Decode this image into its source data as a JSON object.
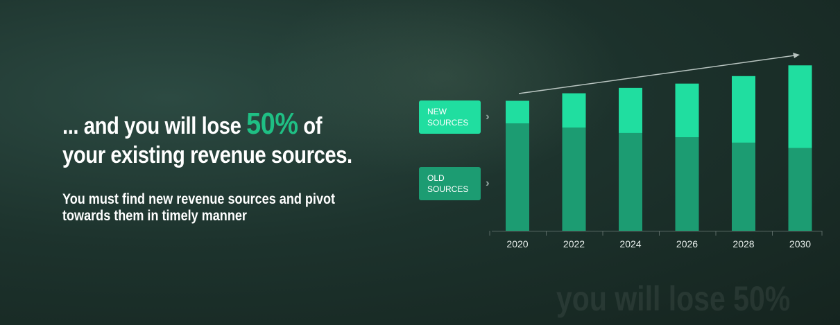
{
  "headline": {
    "prefix": "... and you will lose ",
    "highlight": "50%",
    "suffix": " of your existing revenue sources."
  },
  "subtext": "You must find new revenue sources and pivot towards them in timely manner",
  "watermark": "you will lose 50%",
  "colors": {
    "new_sources": "#20dea0",
    "old_sources": "#1c9c72",
    "highlight": "#1fbf84"
  },
  "chart_data": {
    "type": "bar",
    "stacked": true,
    "categories": [
      "2020",
      "2022",
      "2024",
      "2026",
      "2028",
      "2030"
    ],
    "series": [
      {
        "name": "OLD SOURCES",
        "values": [
          100,
          96,
          91,
          87,
          82,
          77
        ]
      },
      {
        "name": "NEW SOURCES",
        "values": [
          21,
          32,
          42,
          50,
          62,
          77
        ]
      }
    ],
    "legend": {
      "placement": "left",
      "labels": [
        "NEW SOURCES",
        "OLD SOURCES"
      ]
    },
    "trend_arrow": true,
    "grid": false,
    "ylim": [
      0,
      160
    ]
  }
}
